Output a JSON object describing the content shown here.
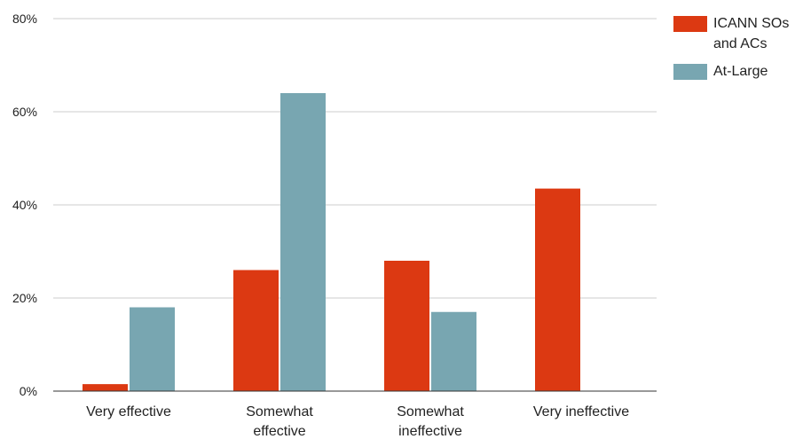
{
  "chart_data": {
    "type": "bar",
    "categories": [
      [
        "Very effective"
      ],
      [
        "Somewhat",
        "effective"
      ],
      [
        "Somewhat",
        "ineffective"
      ],
      [
        "Very ineffective"
      ]
    ],
    "series": [
      {
        "name": "ICANN SOs and ACs",
        "color": "#dc3912",
        "values": [
          1.5,
          26,
          28,
          43.5
        ]
      },
      {
        "name": "At-Large",
        "color": "#78a6b1",
        "values": [
          18,
          64,
          17,
          0
        ]
      }
    ],
    "ylim": [
      0,
      80
    ],
    "yticks": [
      "0%",
      "20%",
      "40%",
      "60%",
      "80%"
    ],
    "ytick_values": [
      0,
      20,
      40,
      60,
      80
    ],
    "grid": true,
    "legend_position": "right"
  },
  "legend": {
    "items": [
      {
        "label": "ICANN SOs and ACs",
        "color": "#dc3912"
      },
      {
        "label": "At-Large",
        "color": "#78a6b1"
      }
    ]
  }
}
